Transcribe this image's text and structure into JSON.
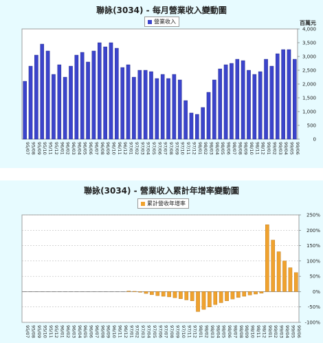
{
  "colors": {
    "panel_bg": "#e7fbff",
    "revenue_bar": "#3b44cc",
    "revenue_bar_edge": "#1a1f7a",
    "yoy_bar": "#f0a22e",
    "yoy_bar_edge": "#b06f10"
  },
  "chart_data": [
    {
      "type": "bar",
      "title": "聯詠(3034) - 每月營業收入變動圖",
      "unit": "百萬元",
      "legend": [
        "營業收入"
      ],
      "legend_position": "top-center",
      "ylim": [
        0,
        4000
      ],
      "yticks": [
        "0",
        "500",
        "1,000",
        "1,500",
        "2,000",
        "2,500",
        "3,000",
        "3,500",
        "4,000"
      ],
      "grid": false,
      "categories": [
        "95/07",
        "95/08",
        "95/09",
        "95/10",
        "95/11",
        "95/12",
        "96/01",
        "96/02",
        "96/03",
        "96/04",
        "96/05",
        "96/06",
        "96/07",
        "96/08",
        "96/09",
        "96/10",
        "96/11",
        "96/12",
        "97/01",
        "97/02",
        "97/03",
        "97/04",
        "97/05",
        "97/06",
        "97/07",
        "97/08",
        "97/09",
        "97/10",
        "97/11",
        "97/12",
        "98/01",
        "98/02",
        "98/03",
        "98/04",
        "98/05",
        "98/06",
        "98/07",
        "98/08",
        "98/09",
        "98/10",
        "98/11",
        "98/12",
        "99/01",
        "99/02",
        "99/03",
        "99/04",
        "99/05",
        "99/06"
      ],
      "series": [
        {
          "name": "營業收入",
          "values": [
            2100,
            2650,
            3050,
            3450,
            3200,
            2350,
            2700,
            2250,
            2650,
            3050,
            3150,
            2800,
            3200,
            3500,
            3350,
            3500,
            3300,
            2600,
            2700,
            2250,
            2500,
            2500,
            2450,
            2200,
            2350,
            2200,
            2350,
            2150,
            1400,
            950,
            900,
            1150,
            1700,
            2150,
            2550,
            2700,
            2750,
            2900,
            2850,
            2500,
            2350,
            2450,
            2900,
            2650,
            3100,
            3250,
            3250,
            2900
          ]
        }
      ]
    },
    {
      "type": "bar",
      "title": "聯詠(3034) -  營業收入累計年增率變動圖",
      "legend": [
        "累計營收年增率"
      ],
      "legend_position": "top-center",
      "ylim": [
        -100,
        250
      ],
      "yticks": [
        "-100%",
        "-50%",
        "0%",
        "50%",
        "100%",
        "150%",
        "200%",
        "250%"
      ],
      "grid": true,
      "categories": [
        "95/07",
        "95/08",
        "95/09",
        "95/10",
        "95/11",
        "95/12",
        "96/01",
        "96/02",
        "96/03",
        "96/04",
        "96/05",
        "96/06",
        "96/07",
        "96/08",
        "96/09",
        "96/10",
        "96/11",
        "96/12",
        "97/01",
        "97/02",
        "97/03",
        "97/04",
        "97/05",
        "97/06",
        "97/07",
        "97/08",
        "97/09",
        "97/10",
        "97/11",
        "97/12",
        "98/01",
        "98/02",
        "98/03",
        "98/04",
        "98/05",
        "98/06",
        "98/07",
        "98/08",
        "98/09",
        "98/10",
        "98/11",
        "98/12",
        "99/01",
        "99/02",
        "99/03",
        "99/04",
        "99/05",
        "99/06"
      ],
      "series": [
        {
          "name": "累計營收年增率",
          "values": [
            0,
            0,
            0,
            0,
            0,
            0,
            0,
            0,
            0,
            0,
            0,
            0,
            0,
            0,
            0,
            0,
            0,
            0,
            2,
            1,
            -2,
            -6,
            -10,
            -13,
            -15,
            -17,
            -20,
            -23,
            -27,
            -30,
            -65,
            -58,
            -50,
            -42,
            -36,
            -30,
            -24,
            -19,
            -15,
            -11,
            -8,
            -5,
            218,
            168,
            130,
            100,
            78,
            62
          ]
        }
      ]
    }
  ]
}
